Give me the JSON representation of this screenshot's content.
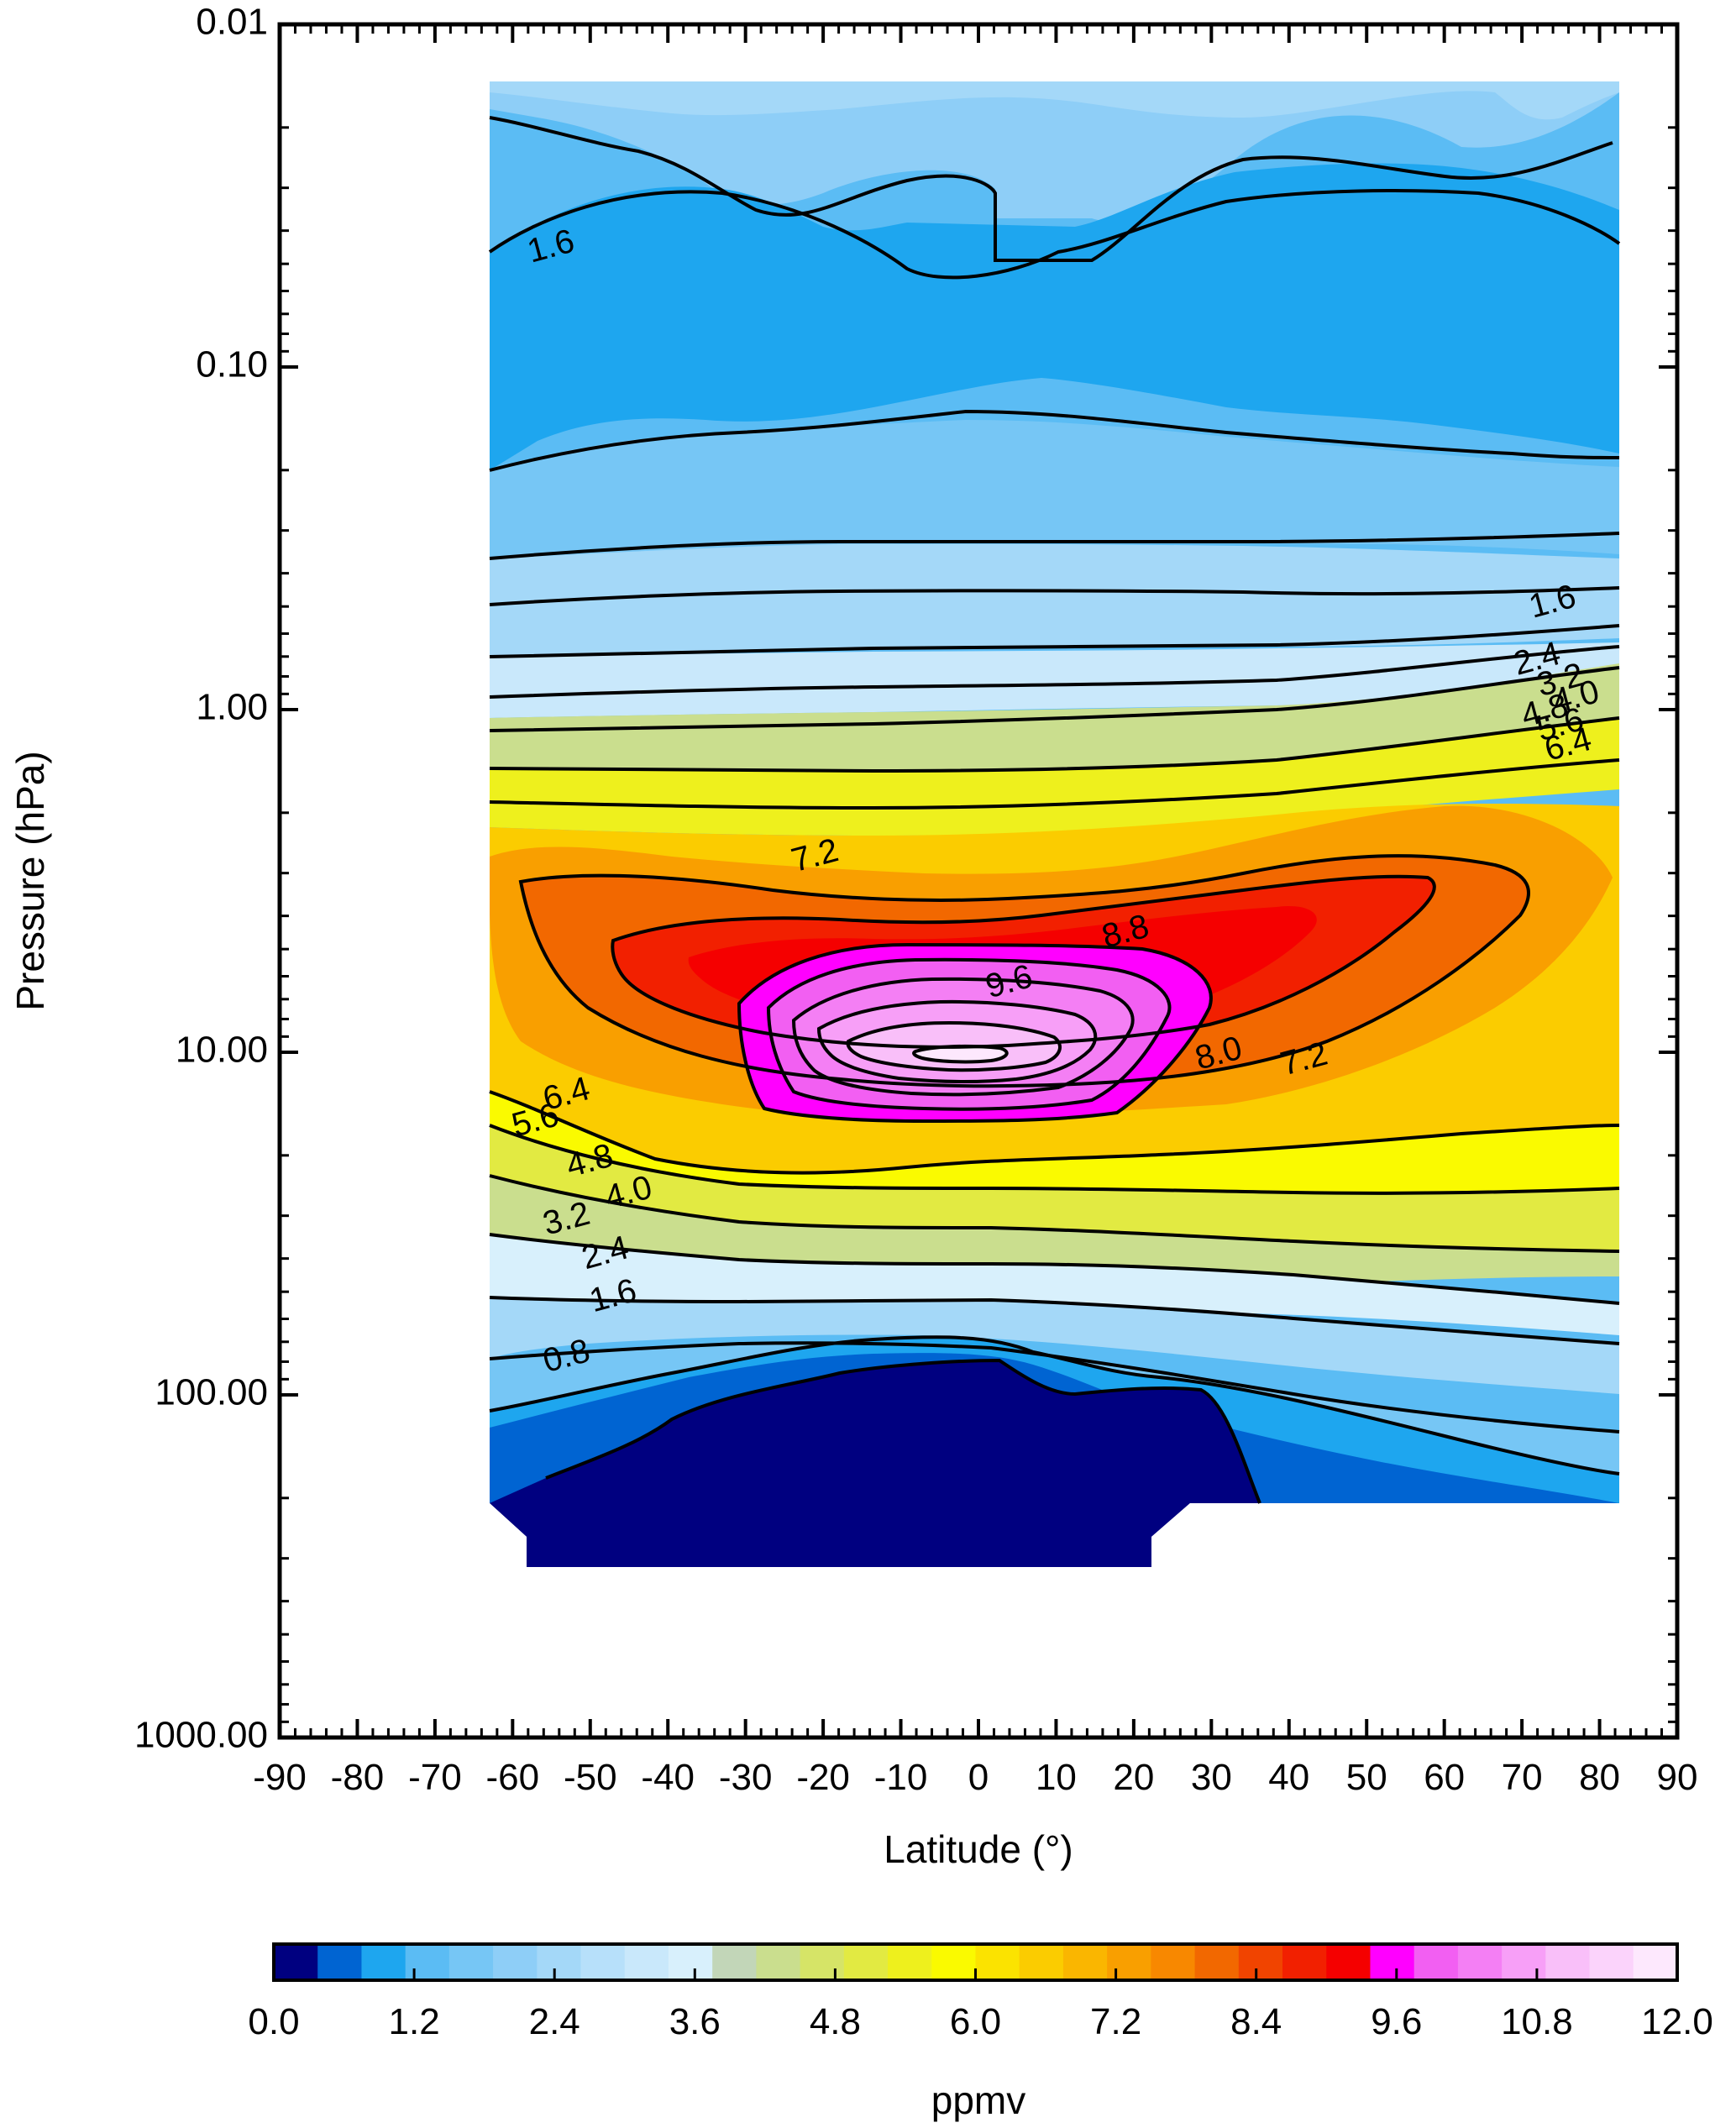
{
  "chart_data": {
    "type": "contour",
    "xlabel": "Latitude (°)",
    "ylabel": "Pressure (hPa)",
    "xlim": [
      -90,
      90
    ],
    "ylim": [
      1000.0,
      0.01
    ],
    "y_scale": "log",
    "x_ticks": [
      -90,
      -80,
      -70,
      -60,
      -50,
      -40,
      -30,
      -20,
      -10,
      0,
      10,
      20,
      30,
      40,
      50,
      60,
      70,
      80,
      90
    ],
    "x_tick_labels": [
      "-90",
      "-80",
      "-70",
      "-60",
      "-50",
      "-40",
      "-30",
      "-20",
      "-10",
      "0",
      "10",
      "20",
      "30",
      "40",
      "50",
      "60",
      "70",
      "80",
      "90"
    ],
    "y_ticks": [
      0.01,
      0.1,
      1.0,
      10.0,
      100.0,
      1000.0
    ],
    "y_tick_labels": [
      "0.01",
      "0.10",
      "1.00",
      "10.00",
      "100.00",
      "1000.00"
    ],
    "data_extent": {
      "lat": [
        -63,
        82
      ],
      "pressure": [
        0.0135,
        250
      ]
    },
    "contour_interval": 0.4,
    "contour_labels": [
      {
        "text": "1.6",
        "lat": -55,
        "p": 0.045
      },
      {
        "text": "1.6",
        "lat": 74,
        "p": 0.49
      },
      {
        "text": "2.4",
        "lat": 72,
        "p": 0.72
      },
      {
        "text": "3.2",
        "lat": 75,
        "p": 0.83
      },
      {
        "text": "4.0",
        "lat": 77,
        "p": 0.93
      },
      {
        "text": "4.8",
        "lat": 73,
        "p": 1.02
      },
      {
        "text": "5.6",
        "lat": 75,
        "p": 1.12
      },
      {
        "text": "6.4",
        "lat": 76,
        "p": 1.28
      },
      {
        "text": "7.2",
        "lat": -21,
        "p": 2.7
      },
      {
        "text": "8.8",
        "lat": 19,
        "p": 4.5
      },
      {
        "text": "9.6",
        "lat": 4,
        "p": 6.3
      },
      {
        "text": "8.0",
        "lat": 31,
        "p": 10.2
      },
      {
        "text": "7.2",
        "lat": 42,
        "p": 10.6
      },
      {
        "text": "6.4",
        "lat": -53,
        "p": 13.4
      },
      {
        "text": "5.6",
        "lat": -57,
        "p": 16.0
      },
      {
        "text": "4.8",
        "lat": -50,
        "p": 21.0
      },
      {
        "text": "4.0",
        "lat": -45,
        "p": 26.0
      },
      {
        "text": "3.2",
        "lat": -53,
        "p": 31.0
      },
      {
        "text": "2.4",
        "lat": -48,
        "p": 39.0
      },
      {
        "text": "1.6",
        "lat": -47,
        "p": 52.0
      },
      {
        "text": "0.8",
        "lat": -53,
        "p": 78.0
      }
    ],
    "colorbar": {
      "label": "ppmv",
      "min": 0.0,
      "max": 12.0,
      "step": 0.4,
      "tick_values": [
        0.0,
        1.2,
        2.4,
        3.6,
        4.8,
        6.0,
        7.2,
        8.4,
        9.6,
        10.8,
        12.0
      ],
      "tick_labels": [
        "0.0",
        "1.2",
        "2.4",
        "3.6",
        "4.8",
        "6.0",
        "7.2",
        "8.4",
        "9.6",
        "10.8",
        "12.0"
      ],
      "colors": [
        "#000080",
        "#0064d2",
        "#1ea6ef",
        "#5bbcf4",
        "#76c6f5",
        "#8ecef7",
        "#a4d8f8",
        "#b7e0fa",
        "#c9e8fb",
        "#d8f0fc",
        "#c2d6b8",
        "#cade8e",
        "#d6e467",
        "#e2ea42",
        "#eef01d",
        "#fafa00",
        "#fbe300",
        "#fbcc00",
        "#fab600",
        "#f99f00",
        "#f88800",
        "#f26800",
        "#f14400",
        "#f22000",
        "#f50000",
        "#ff00ff",
        "#f25ff2",
        "#f47ff4",
        "#f79ff7",
        "#f9bff9",
        "#fbd3fb",
        "#fde8fd"
      ]
    }
  }
}
